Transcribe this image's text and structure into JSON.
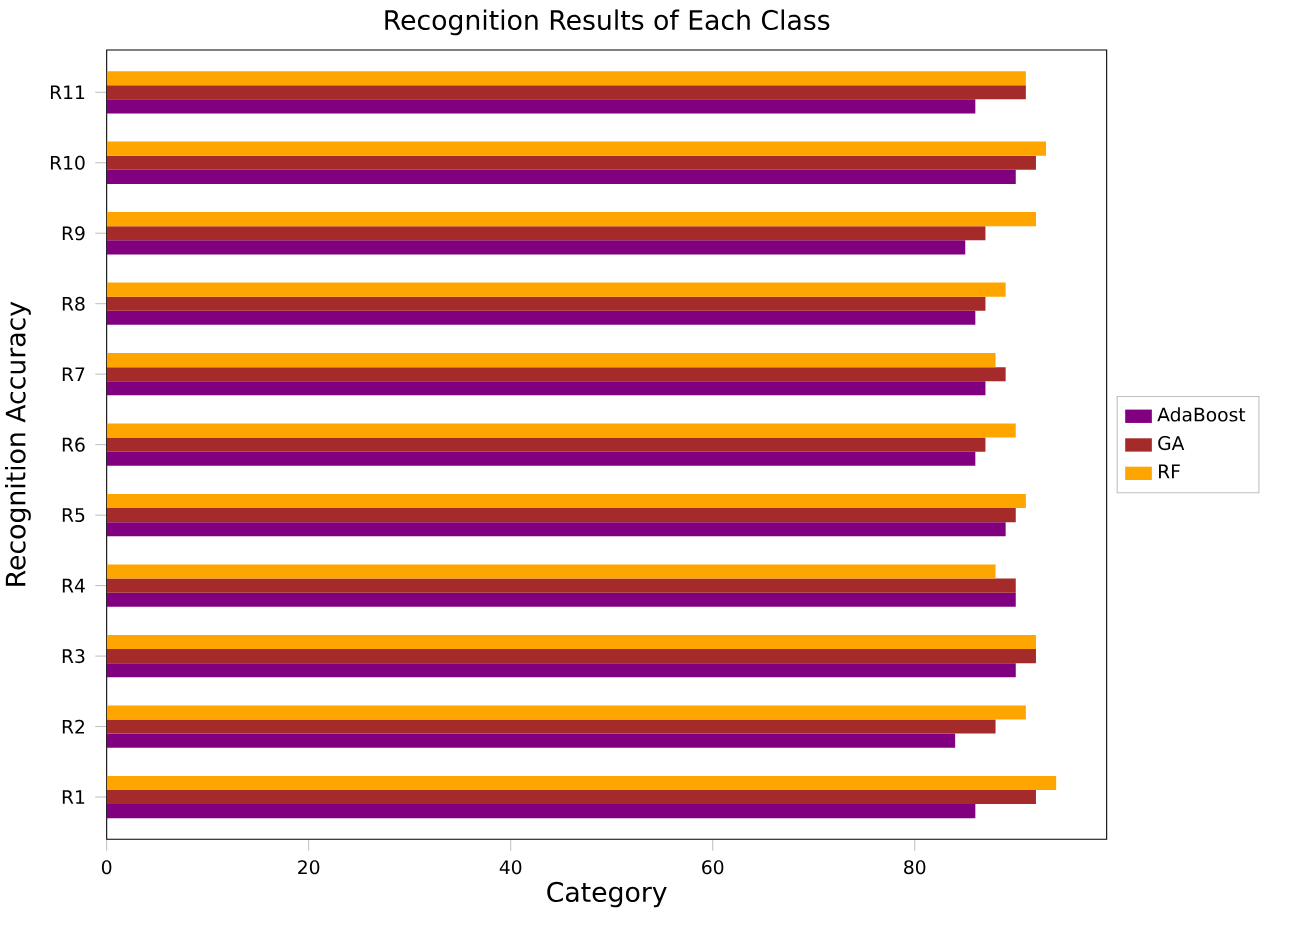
{
  "chart_data": {
    "type": "bar",
    "orientation": "horizontal",
    "title": "Recognition Results of Each Class",
    "xlabel": "Category",
    "ylabel": "Recognition Accuracy",
    "categories": [
      "R11",
      "R10",
      "R9",
      "R8",
      "R7",
      "R6",
      "R5",
      "R4",
      "R3",
      "R2",
      "R1"
    ],
    "series": [
      {
        "name": "AdaBoost",
        "color": "#800080",
        "values": [
          86,
          90,
          85,
          86,
          87,
          86,
          89,
          90,
          90,
          84,
          86
        ]
      },
      {
        "name": "GA",
        "color": "#a52a2a",
        "values": [
          91,
          92,
          87,
          87,
          89,
          87,
          90,
          90,
          92,
          88,
          92
        ]
      },
      {
        "name": "RF",
        "color": "#ffa500",
        "values": [
          91,
          93,
          92,
          89,
          88,
          90,
          91,
          88,
          92,
          91,
          94
        ]
      }
    ],
    "xlim": [
      0,
      99
    ],
    "xticks": [
      0,
      20,
      40,
      60,
      80
    ],
    "legend": "right"
  }
}
